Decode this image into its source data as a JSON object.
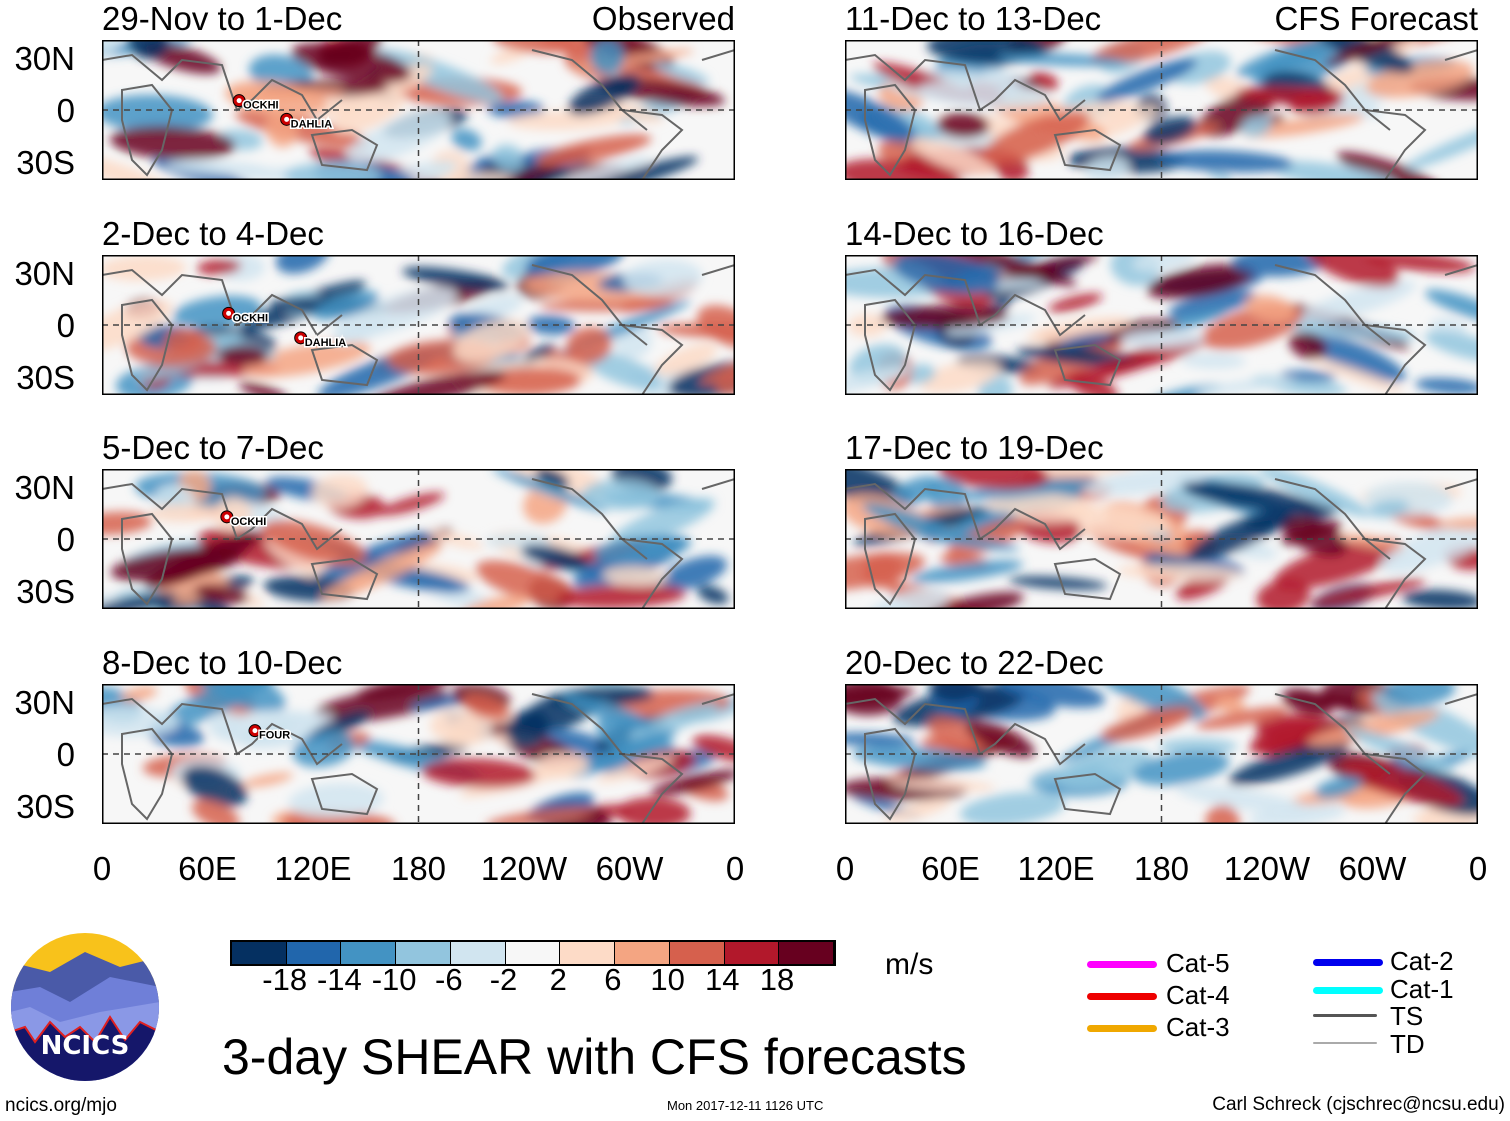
{
  "panels": [
    {
      "id": "p1",
      "title": "29-Nov to 1-Dec",
      "right_title": "Observed",
      "storms": [
        {
          "name": "OCKHI",
          "lon": 78,
          "lat": 8
        },
        {
          "name": "DAHLIA",
          "lon": 105,
          "lat": -8
        }
      ]
    },
    {
      "id": "p2",
      "title": "2-Dec to 4-Dec",
      "right_title": "",
      "storms": [
        {
          "name": "OCKHI",
          "lon": 72,
          "lat": 10
        },
        {
          "name": "DAHLIA",
          "lon": 113,
          "lat": -11
        }
      ]
    },
    {
      "id": "p3",
      "title": "5-Dec to 7-Dec",
      "right_title": "",
      "storms": [
        {
          "name": "OCKHI",
          "lon": 71,
          "lat": 19
        }
      ]
    },
    {
      "id": "p4",
      "title": "8-Dec to 10-Dec",
      "right_title": "",
      "storms": [
        {
          "name": "FOUR",
          "lon": 87,
          "lat": 20
        }
      ]
    },
    {
      "id": "p5",
      "title": "11-Dec to 13-Dec",
      "right_title": "CFS Forecast",
      "storms": []
    },
    {
      "id": "p6",
      "title": "14-Dec to 16-Dec",
      "right_title": "",
      "storms": []
    },
    {
      "id": "p7",
      "title": "17-Dec to 19-Dec",
      "right_title": "",
      "storms": []
    },
    {
      "id": "p8",
      "title": "20-Dec to 22-Dec",
      "right_title": "",
      "storms": []
    }
  ],
  "lat_labels": [
    "30N",
    "0",
    "30S"
  ],
  "lon_labels": [
    "0",
    "60E",
    "120E",
    "180",
    "120W",
    "60W",
    "0"
  ],
  "colorbar": {
    "colors": [
      "#053061",
      "#2166ac",
      "#4393c3",
      "#92c5de",
      "#d1e5f0",
      "#f7f7f7",
      "#fddbc7",
      "#f4a582",
      "#d6604d",
      "#b2182b",
      "#67001f"
    ],
    "labels": [
      "-18",
      "-14",
      "-10",
      "-6",
      "-2",
      "2",
      "6",
      "10",
      "14",
      "18"
    ],
    "units": "m/s"
  },
  "legend": [
    {
      "label": "Cat-5",
      "color": "#ff00ff"
    },
    {
      "label": "Cat-4",
      "color": "#ee0000"
    },
    {
      "label": "Cat-3",
      "color": "#f0a800"
    },
    {
      "label": "Cat-2",
      "color": "#0000ee"
    },
    {
      "label": "Cat-1",
      "color": "#00ffff"
    },
    {
      "label": "TS",
      "color": "#555555"
    },
    {
      "label": "TD",
      "color": "#aaaaaa"
    }
  ],
  "logo_text": "NCICS",
  "main_title": "3-day SHEAR with CFS forecasts",
  "footer": {
    "left": "ncics.org/mjo",
    "center": "Mon 2017-12-11 1126 UTC",
    "right": "Carl Schreck (cjschrec@ncsu.edu)"
  }
}
